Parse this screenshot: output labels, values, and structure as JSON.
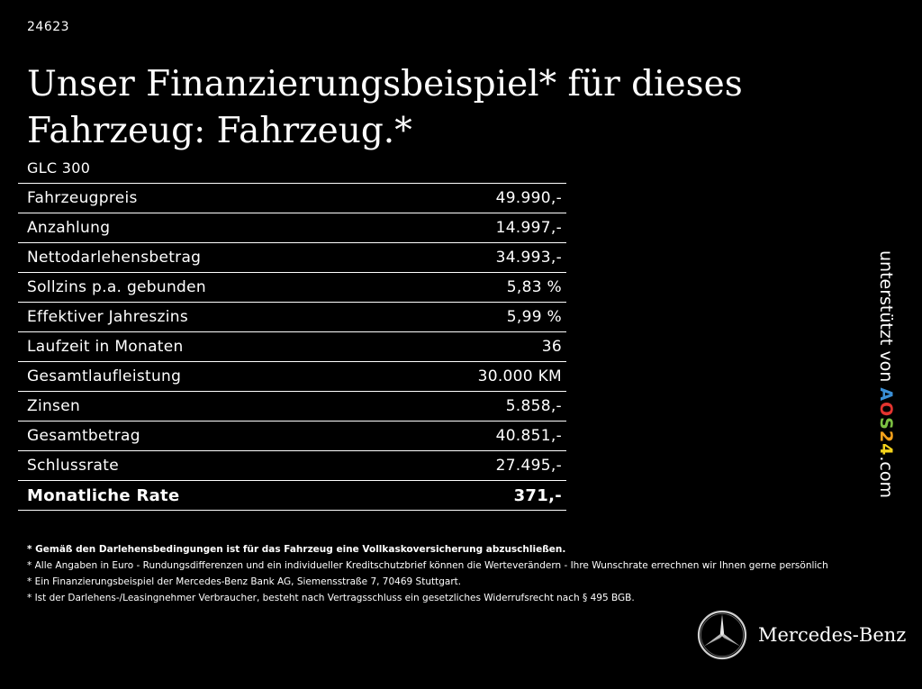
{
  "code": "24623",
  "headline": "Unser Finanzierungsbeispiel* für dieses Fahrzeug: Fahrzeug.*",
  "model": "GLC 300",
  "rows": [
    {
      "label": "Fahrzeugpreis",
      "value": "49.990,-"
    },
    {
      "label": "Anzahlung",
      "value": "14.997,-"
    },
    {
      "label": "Nettodarlehensbetrag",
      "value": "34.993,-"
    },
    {
      "label": "Sollzins p.a. gebunden",
      "value": "5,83 %"
    },
    {
      "label": "Effektiver Jahreszins",
      "value": "5,99 %"
    },
    {
      "label": "Laufzeit in Monaten",
      "value": "36"
    },
    {
      "label": "Gesamtlaufleistung",
      "value": "30.000 KM"
    },
    {
      "label": "Zinsen",
      "value": "5.858,-"
    },
    {
      "label": "Gesamtbetrag",
      "value": "40.851,-"
    },
    {
      "label": "Schlussrate",
      "value": "27.495,-"
    },
    {
      "label": "Monatliche Rate",
      "value": "371,-"
    }
  ],
  "notes": [
    "* Gemäß den Darlehensbedingungen ist für das Fahrzeug eine Vollkaskoversicherung abzuschließen.",
    "* Alle Angaben in Euro - Rundungsdifferenzen und ein individueller Kreditschutzbrief können die Werteverändern - Ihre Wunschrate errechnen wir Ihnen gerne persönlich",
    "* Ein Finanzierungsbeispiel der Mercedes-Benz Bank AG, Siemensstraße 7, 70469 Stuttgart.",
    "* Ist der Darlehens-/Leasingnehmer Verbraucher, besteht nach Vertragsschluss ein gesetzliches Widerrufsrecht nach § 495 BGB."
  ],
  "side": {
    "prefix": "unterstützt von",
    "brand_letters": [
      {
        "ch": "A",
        "color": "#3a8fd6"
      },
      {
        "ch": "O",
        "color": "#e3342f"
      },
      {
        "ch": "S",
        "color": "#7cc142"
      },
      {
        "ch": "2",
        "color": "#f7a21b"
      },
      {
        "ch": "4",
        "color": "#f5d31b"
      }
    ],
    "suffix": ".com"
  },
  "brand_name": "Mercedes-Benz",
  "colors": {
    "background": "#000000",
    "text": "#ffffff"
  }
}
